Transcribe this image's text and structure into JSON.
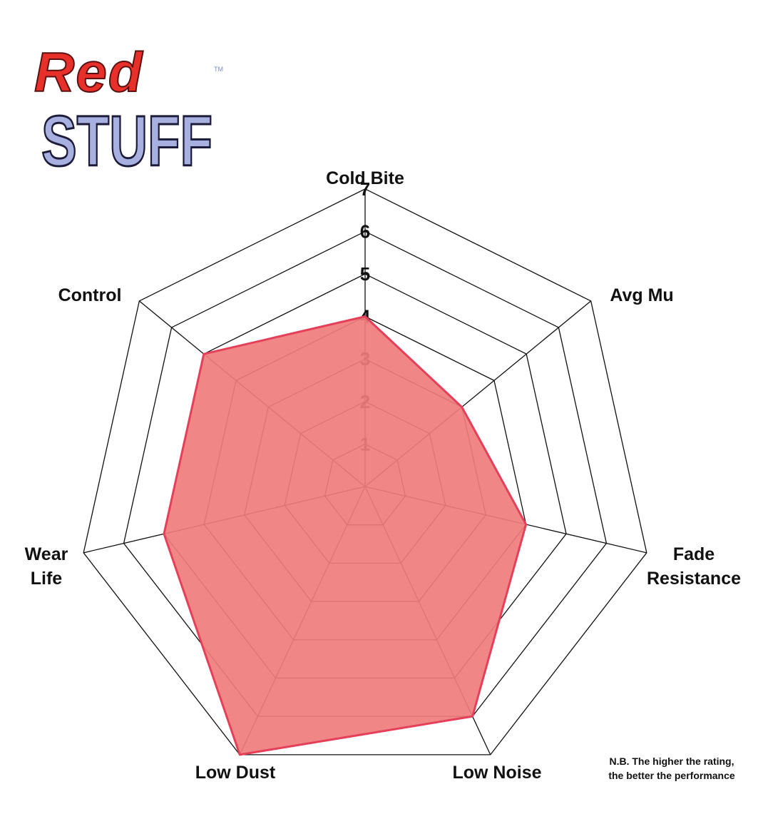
{
  "logo": {
    "line1": "Red",
    "line2": "STUFF",
    "mark": "TM"
  },
  "chart_data": {
    "type": "radar",
    "categories": [
      [
        "Cold Bite"
      ],
      [
        "Avg Mu"
      ],
      [
        "Fade",
        "Resistance"
      ],
      [
        "Low Noise"
      ],
      [
        "Low Dust"
      ],
      [
        "Wear",
        "Life"
      ],
      [
        "Control"
      ]
    ],
    "values": [
      4,
      3,
      4,
      6,
      7,
      5,
      5
    ],
    "color": "#f07c7c",
    "edge_color": "#e4405a",
    "rlim": [
      0,
      7
    ],
    "rticks": [
      1,
      2,
      3,
      4,
      5,
      6,
      7
    ],
    "note": [
      "N.B. The higher the rating,",
      "the better the performance"
    ]
  }
}
